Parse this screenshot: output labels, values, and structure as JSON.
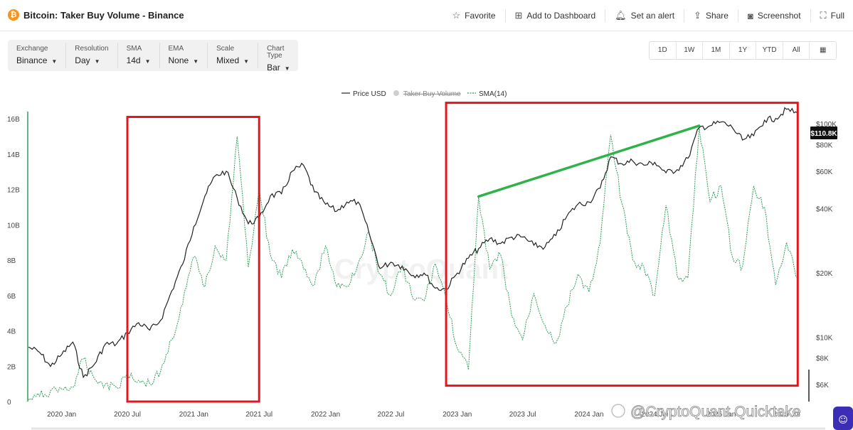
{
  "header": {
    "title": "Bitcoin: Taker Buy Volume - Binance",
    "actions": [
      {
        "label": "Favorite",
        "icon": "star-icon"
      },
      {
        "label": "Add to Dashboard",
        "icon": "dashboard-add-icon"
      },
      {
        "label": "Set an alert",
        "icon": "bell-icon"
      },
      {
        "label": "Share",
        "icon": "share-icon"
      },
      {
        "label": "Screenshot",
        "icon": "camera-icon"
      },
      {
        "label": "Full",
        "icon": "fullscreen-icon"
      }
    ]
  },
  "toolbar": [
    {
      "label": "Exchange",
      "value": "Binance"
    },
    {
      "label": "Resolution",
      "value": "Day"
    },
    {
      "label": "SMA",
      "value": "14d"
    },
    {
      "label": "EMA",
      "value": "None"
    },
    {
      "label": "Scale",
      "value": "Mixed"
    },
    {
      "label": "Chart Type",
      "value": "Bar"
    }
  ],
  "ranges": [
    "1D",
    "1W",
    "1M",
    "1Y",
    "YTD",
    "All"
  ],
  "legend": [
    {
      "name": "Price USD",
      "color": "#222222",
      "style": "solid"
    },
    {
      "name": "Taker Buy Volume",
      "color": "#c8c8c8",
      "style": "hidden"
    },
    {
      "name": "SMA(14)",
      "color": "#2e9e5b",
      "style": "dashed"
    }
  ],
  "price_label": "$110.8K",
  "watermark": "CryptoQuant",
  "credit": "@CryptoQuant Quicktake",
  "colors": {
    "price": "#222222",
    "sma": "#2e9e5b",
    "annotation_box": "#e3161e",
    "trend_line": "#2fb24a",
    "accent": "#f7931a"
  },
  "chart_data": {
    "type": "line",
    "grid": false,
    "x_ticks": [
      "2020 Jan",
      "2020 Jul",
      "2021 Jan",
      "2021 Jul",
      "2022 Jan",
      "2022 Jul",
      "2023 Jan",
      "2023 Jul",
      "2024 Jan",
      "2024 Jul",
      "2025 Jan",
      "2025 Jul"
    ],
    "xlim": [
      "2019-10",
      "2025-09"
    ],
    "y_left": {
      "ticks": [
        "0",
        "2B",
        "4B",
        "6B",
        "8B",
        "10B",
        "12B",
        "14B",
        "16B"
      ],
      "range": [
        0,
        16
      ]
    },
    "y_right": {
      "scale": "log",
      "ticks": [
        "$6K",
        "$8K",
        "$10K",
        "$20K",
        "$40K",
        "$60K",
        "$80K",
        "$100K"
      ],
      "range": [
        5000,
        130000
      ]
    },
    "series": [
      {
        "name": "Price USD",
        "axis": "right",
        "x": [
          "2019-10",
          "2019-11",
          "2019-12",
          "2020-01",
          "2020-02",
          "2020-03",
          "2020-04",
          "2020-05",
          "2020-06",
          "2020-07",
          "2020-08",
          "2020-09",
          "2020-10",
          "2020-11",
          "2020-12",
          "2021-01",
          "2021-02",
          "2021-03",
          "2021-04",
          "2021-05",
          "2021-06",
          "2021-07",
          "2021-08",
          "2021-09",
          "2021-10",
          "2021-11",
          "2021-12",
          "2022-01",
          "2022-02",
          "2022-03",
          "2022-04",
          "2022-05",
          "2022-06",
          "2022-07",
          "2022-08",
          "2022-09",
          "2022-10",
          "2022-11",
          "2022-12",
          "2023-01",
          "2023-02",
          "2023-03",
          "2023-04",
          "2023-05",
          "2023-06",
          "2023-07",
          "2023-08",
          "2023-09",
          "2023-10",
          "2023-11",
          "2023-12",
          "2024-01",
          "2024-02",
          "2024-03",
          "2024-04",
          "2024-05",
          "2024-06",
          "2024-07",
          "2024-08",
          "2024-09",
          "2024-10",
          "2024-11",
          "2024-12",
          "2025-01",
          "2025-02",
          "2025-03",
          "2025-04",
          "2025-05",
          "2025-06",
          "2025-07",
          "2025-08"
        ],
        "y": [
          9000,
          8500,
          7300,
          8300,
          9500,
          6500,
          7500,
          9300,
          9300,
          10500,
          11700,
          10800,
          12000,
          16500,
          22000,
          33000,
          46000,
          57000,
          60000,
          45000,
          34000,
          36000,
          46000,
          47000,
          60000,
          64000,
          48000,
          42000,
          39000,
          43000,
          43000,
          31000,
          21000,
          22500,
          21500,
          19500,
          20000,
          17000,
          16800,
          20000,
          23500,
          26000,
          29000,
          27500,
          29500,
          29500,
          27000,
          26500,
          30000,
          37000,
          42000,
          43000,
          50000,
          70000,
          65000,
          67000,
          64000,
          66000,
          59000,
          61000,
          69000,
          96000,
          98000,
          102000,
          96000,
          84000,
          88000,
          104000,
          106000,
          117000,
          112000
        ]
      },
      {
        "name": "SMA(14)",
        "axis": "left",
        "x": [
          "2019-10",
          "2019-11",
          "2019-12",
          "2020-01",
          "2020-02",
          "2020-03",
          "2020-04",
          "2020-05",
          "2020-06",
          "2020-07",
          "2020-08",
          "2020-09",
          "2020-10",
          "2020-11",
          "2020-12",
          "2021-01",
          "2021-02",
          "2021-03",
          "2021-04",
          "2021-05",
          "2021-06",
          "2021-07",
          "2021-08",
          "2021-09",
          "2021-10",
          "2021-11",
          "2021-12",
          "2022-01",
          "2022-02",
          "2022-03",
          "2022-04",
          "2022-05",
          "2022-06",
          "2022-07",
          "2022-08",
          "2022-09",
          "2022-10",
          "2022-11",
          "2022-12",
          "2023-01",
          "2023-02",
          "2023-03",
          "2023-04",
          "2023-05",
          "2023-06",
          "2023-07",
          "2023-08",
          "2023-09",
          "2023-10",
          "2023-11",
          "2023-12",
          "2024-01",
          "2024-02",
          "2024-03",
          "2024-04",
          "2024-05",
          "2024-06",
          "2024-07",
          "2024-08",
          "2024-09",
          "2024-10",
          "2024-11",
          "2024-12",
          "2025-01",
          "2025-02",
          "2025-03",
          "2025-04",
          "2025-05",
          "2025-06",
          "2025-07",
          "2025-08"
        ],
        "y": [
          0.1,
          0.3,
          0.6,
          0.7,
          0.8,
          2.4,
          1.3,
          1.0,
          0.8,
          1.6,
          1.2,
          1.0,
          1.7,
          3.5,
          5.5,
          8.2,
          6.5,
          8.8,
          8.0,
          15.0,
          7.6,
          12.0,
          8.3,
          7.0,
          8.6,
          7.5,
          6.6,
          8.8,
          6.5,
          6.5,
          7.8,
          9.6,
          7.2,
          6.0,
          7.7,
          5.8,
          5.7,
          7.8,
          5.8,
          3.0,
          1.8,
          11.6,
          7.5,
          8.3,
          4.8,
          3.5,
          6.1,
          4.3,
          3.3,
          5.4,
          7.2,
          6.2,
          9.0,
          15.1,
          11.2,
          8.0,
          7.6,
          6.0,
          11.1,
          7.1,
          7.0,
          15.5,
          11.3,
          12.2,
          8.2,
          7.6,
          12.2,
          11.0,
          6.6,
          9.0,
          7.0
        ]
      }
    ],
    "annotations": [
      {
        "type": "box",
        "x0": "2020-07",
        "x1": "2021-07",
        "y0": 0,
        "y1": 16.1,
        "axis": "left",
        "color": "#e3161e"
      },
      {
        "type": "box",
        "x0": "2022-12",
        "x1": "2025-08",
        "y0": 0.9,
        "y1": 16.9,
        "axis": "left",
        "color": "#e3161e"
      },
      {
        "type": "trendline",
        "x0": "2023-03",
        "y0": 11.6,
        "x1": "2024-11",
        "y1": 15.6,
        "axis": "left",
        "color": "#2fb24a"
      }
    ]
  }
}
